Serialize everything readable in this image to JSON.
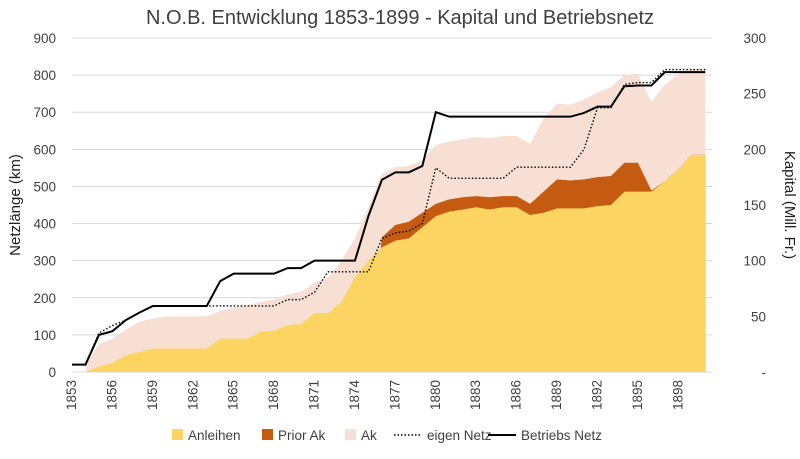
{
  "chart_data": {
    "type": "area",
    "title": "N.O.B. Entwicklung 1853-1899 - Kapital und Betriebsnetz",
    "ylabel": "Netzlänge (km)",
    "y2label": "Kapital (Mill. Fr.)",
    "xlim": [
      1853,
      1900.5
    ],
    "ylim": [
      0,
      900
    ],
    "y2lim": [
      0,
      300
    ],
    "x_ticks": [
      "1853",
      "1856",
      "1859",
      "1862",
      "1865",
      "1868",
      "1871",
      "1874",
      "1877",
      "1880",
      "1883",
      "1886",
      "1889",
      "1892",
      "1895",
      "1898"
    ],
    "y_ticks": [
      "0",
      "100",
      "200",
      "300",
      "400",
      "500",
      "600",
      "700",
      "800",
      "900"
    ],
    "y2_ticks": [
      "-",
      "50",
      "100",
      "150",
      "200",
      "250",
      "300"
    ],
    "grid": true,
    "legend_position": "bottom",
    "legend": [
      "Anleihen",
      "Prior Ak",
      "Ak",
      "eigen Netz",
      "Betriebs Netz"
    ],
    "colors": {
      "Anleihen": "#fcd462",
      "Prior Ak": "#c55a11",
      "Ak": "#f8dfd3",
      "eigen Netz": "#000000",
      "Betriebs Netz": "#000000",
      "grid": "#d9d9d9",
      "text": "#404040"
    },
    "stacked_area_axis": "y2",
    "stacked_areas": [
      {
        "name": "Anleihen",
        "points": [
          [
            1854,
            0
          ],
          [
            1855,
            5
          ],
          [
            1856,
            8
          ],
          [
            1857,
            15
          ],
          [
            1858,
            18
          ],
          [
            1859,
            21
          ],
          [
            1860,
            21
          ],
          [
            1861,
            21
          ],
          [
            1862,
            21
          ],
          [
            1863,
            21
          ],
          [
            1864,
            30
          ],
          [
            1865,
            30
          ],
          [
            1866,
            30
          ],
          [
            1867,
            36
          ],
          [
            1868,
            37
          ],
          [
            1869,
            42
          ],
          [
            1870,
            43
          ],
          [
            1871,
            53
          ],
          [
            1872,
            53
          ],
          [
            1873,
            63
          ],
          [
            1874,
            85
          ],
          [
            1875,
            100
          ],
          [
            1876,
            112
          ],
          [
            1877,
            118
          ],
          [
            1878,
            120
          ],
          [
            1879,
            130
          ],
          [
            1880,
            140
          ],
          [
            1881,
            144
          ],
          [
            1882,
            146
          ],
          [
            1883,
            148
          ],
          [
            1884,
            146
          ],
          [
            1885,
            148
          ],
          [
            1886,
            148
          ],
          [
            1887,
            141
          ],
          [
            1888,
            143
          ],
          [
            1889,
            147
          ],
          [
            1890,
            147
          ],
          [
            1891,
            147
          ],
          [
            1892,
            149
          ],
          [
            1893,
            150
          ],
          [
            1894,
            162
          ],
          [
            1895,
            162
          ],
          [
            1896,
            162
          ],
          [
            1897,
            171
          ],
          [
            1898,
            182
          ],
          [
            1899,
            195
          ],
          [
            1900,
            195
          ]
        ]
      },
      {
        "name": "Prior Ak",
        "points": [
          [
            1854,
            0
          ],
          [
            1855,
            0
          ],
          [
            1856,
            0
          ],
          [
            1857,
            0
          ],
          [
            1858,
            0
          ],
          [
            1859,
            0
          ],
          [
            1860,
            0
          ],
          [
            1861,
            0
          ],
          [
            1862,
            0
          ],
          [
            1863,
            0
          ],
          [
            1864,
            0
          ],
          [
            1865,
            0
          ],
          [
            1866,
            0
          ],
          [
            1867,
            0
          ],
          [
            1868,
            0
          ],
          [
            1869,
            0
          ],
          [
            1870,
            0
          ],
          [
            1871,
            0
          ],
          [
            1872,
            0
          ],
          [
            1873,
            0
          ],
          [
            1874,
            0
          ],
          [
            1875,
            0
          ],
          [
            1876,
            121
          ],
          [
            1877,
            132
          ],
          [
            1878,
            135
          ],
          [
            1879,
            143
          ],
          [
            1880,
            151
          ],
          [
            1881,
            155
          ],
          [
            1882,
            157
          ],
          [
            1883,
            158
          ],
          [
            1884,
            157
          ],
          [
            1885,
            158
          ],
          [
            1886,
            158
          ],
          [
            1887,
            151
          ],
          [
            1888,
            162
          ],
          [
            1889,
            173
          ],
          [
            1890,
            172
          ],
          [
            1891,
            173
          ],
          [
            1892,
            175
          ],
          [
            1893,
            176
          ],
          [
            1894,
            188
          ],
          [
            1895,
            188
          ],
          [
            1896,
            163
          ],
          [
            1897,
            171
          ],
          [
            1898,
            182
          ],
          [
            1899,
            195
          ],
          [
            1900,
            195
          ]
        ]
      },
      {
        "name": "Ak",
        "points": [
          [
            1854,
            8
          ],
          [
            1855,
            25
          ],
          [
            1856,
            30
          ],
          [
            1857,
            38
          ],
          [
            1858,
            45
          ],
          [
            1859,
            48
          ],
          [
            1860,
            50
          ],
          [
            1861,
            50
          ],
          [
            1862,
            50
          ],
          [
            1863,
            50
          ],
          [
            1864,
            55
          ],
          [
            1865,
            58
          ],
          [
            1866,
            60
          ],
          [
            1867,
            63
          ],
          [
            1868,
            65
          ],
          [
            1869,
            70
          ],
          [
            1870,
            72
          ],
          [
            1871,
            80
          ],
          [
            1872,
            85
          ],
          [
            1873,
            100
          ],
          [
            1874,
            120
          ],
          [
            1875,
            148
          ],
          [
            1876,
            178
          ],
          [
            1877,
            184
          ],
          [
            1878,
            185
          ],
          [
            1879,
            190
          ],
          [
            1880,
            204
          ],
          [
            1881,
            207
          ],
          [
            1882,
            209
          ],
          [
            1883,
            211
          ],
          [
            1884,
            210
          ],
          [
            1885,
            212
          ],
          [
            1886,
            212
          ],
          [
            1887,
            205
          ],
          [
            1888,
            228
          ],
          [
            1889,
            241
          ],
          [
            1890,
            240
          ],
          [
            1891,
            245
          ],
          [
            1892,
            251
          ],
          [
            1893,
            256
          ],
          [
            1894,
            267
          ],
          [
            1895,
            268
          ],
          [
            1896,
            243
          ],
          [
            1897,
            258
          ],
          [
            1898,
            268
          ],
          [
            1899,
            272
          ],
          [
            1900,
            272
          ]
        ]
      }
    ],
    "series": [
      {
        "name": "eigen Netz",
        "axis": "y",
        "style": "dotted",
        "points": [
          [
            1853,
            20
          ],
          [
            1854,
            20
          ],
          [
            1855,
            105
          ],
          [
            1856,
            125
          ],
          [
            1857,
            140
          ],
          [
            1858,
            160
          ],
          [
            1859,
            178
          ],
          [
            1860,
            178
          ],
          [
            1861,
            178
          ],
          [
            1862,
            178
          ],
          [
            1863,
            178
          ],
          [
            1864,
            178
          ],
          [
            1865,
            178
          ],
          [
            1866,
            178
          ],
          [
            1867,
            178
          ],
          [
            1868,
            178
          ],
          [
            1869,
            195
          ],
          [
            1870,
            195
          ],
          [
            1871,
            215
          ],
          [
            1872,
            270
          ],
          [
            1873,
            270
          ],
          [
            1874,
            270
          ],
          [
            1875,
            270
          ],
          [
            1876,
            360
          ],
          [
            1877,
            375
          ],
          [
            1878,
            380
          ],
          [
            1879,
            400
          ],
          [
            1880,
            550
          ],
          [
            1881,
            522
          ],
          [
            1882,
            522
          ],
          [
            1883,
            522
          ],
          [
            1884,
            522
          ],
          [
            1885,
            522
          ],
          [
            1886,
            552
          ],
          [
            1887,
            552
          ],
          [
            1888,
            552
          ],
          [
            1889,
            552
          ],
          [
            1890,
            552
          ],
          [
            1891,
            600
          ],
          [
            1892,
            712
          ],
          [
            1893,
            712
          ],
          [
            1894,
            775
          ],
          [
            1895,
            780
          ],
          [
            1896,
            780
          ],
          [
            1897,
            815
          ],
          [
            1898,
            815
          ],
          [
            1899,
            815
          ],
          [
            1900,
            815
          ]
        ]
      },
      {
        "name": "Betriebs Netz",
        "axis": "y",
        "style": "solid",
        "points": [
          [
            1853,
            20
          ],
          [
            1854,
            20
          ],
          [
            1855,
            100
          ],
          [
            1856,
            110
          ],
          [
            1857,
            140
          ],
          [
            1858,
            160
          ],
          [
            1859,
            178
          ],
          [
            1860,
            178
          ],
          [
            1861,
            178
          ],
          [
            1862,
            178
          ],
          [
            1863,
            178
          ],
          [
            1864,
            245
          ],
          [
            1865,
            265
          ],
          [
            1866,
            265
          ],
          [
            1867,
            265
          ],
          [
            1868,
            265
          ],
          [
            1869,
            280
          ],
          [
            1870,
            280
          ],
          [
            1871,
            300
          ],
          [
            1872,
            300
          ],
          [
            1873,
            300
          ],
          [
            1874,
            300
          ],
          [
            1875,
            420
          ],
          [
            1876,
            518
          ],
          [
            1877,
            538
          ],
          [
            1878,
            538
          ],
          [
            1879,
            555
          ],
          [
            1880,
            700
          ],
          [
            1881,
            688
          ],
          [
            1882,
            688
          ],
          [
            1883,
            688
          ],
          [
            1884,
            688
          ],
          [
            1885,
            688
          ],
          [
            1886,
            688
          ],
          [
            1887,
            688
          ],
          [
            1888,
            688
          ],
          [
            1889,
            688
          ],
          [
            1890,
            688
          ],
          [
            1891,
            698
          ],
          [
            1892,
            715
          ],
          [
            1893,
            715
          ],
          [
            1894,
            770
          ],
          [
            1895,
            772
          ],
          [
            1896,
            772
          ],
          [
            1897,
            808
          ],
          [
            1898,
            808
          ],
          [
            1899,
            808
          ],
          [
            1900,
            808
          ]
        ]
      }
    ]
  }
}
